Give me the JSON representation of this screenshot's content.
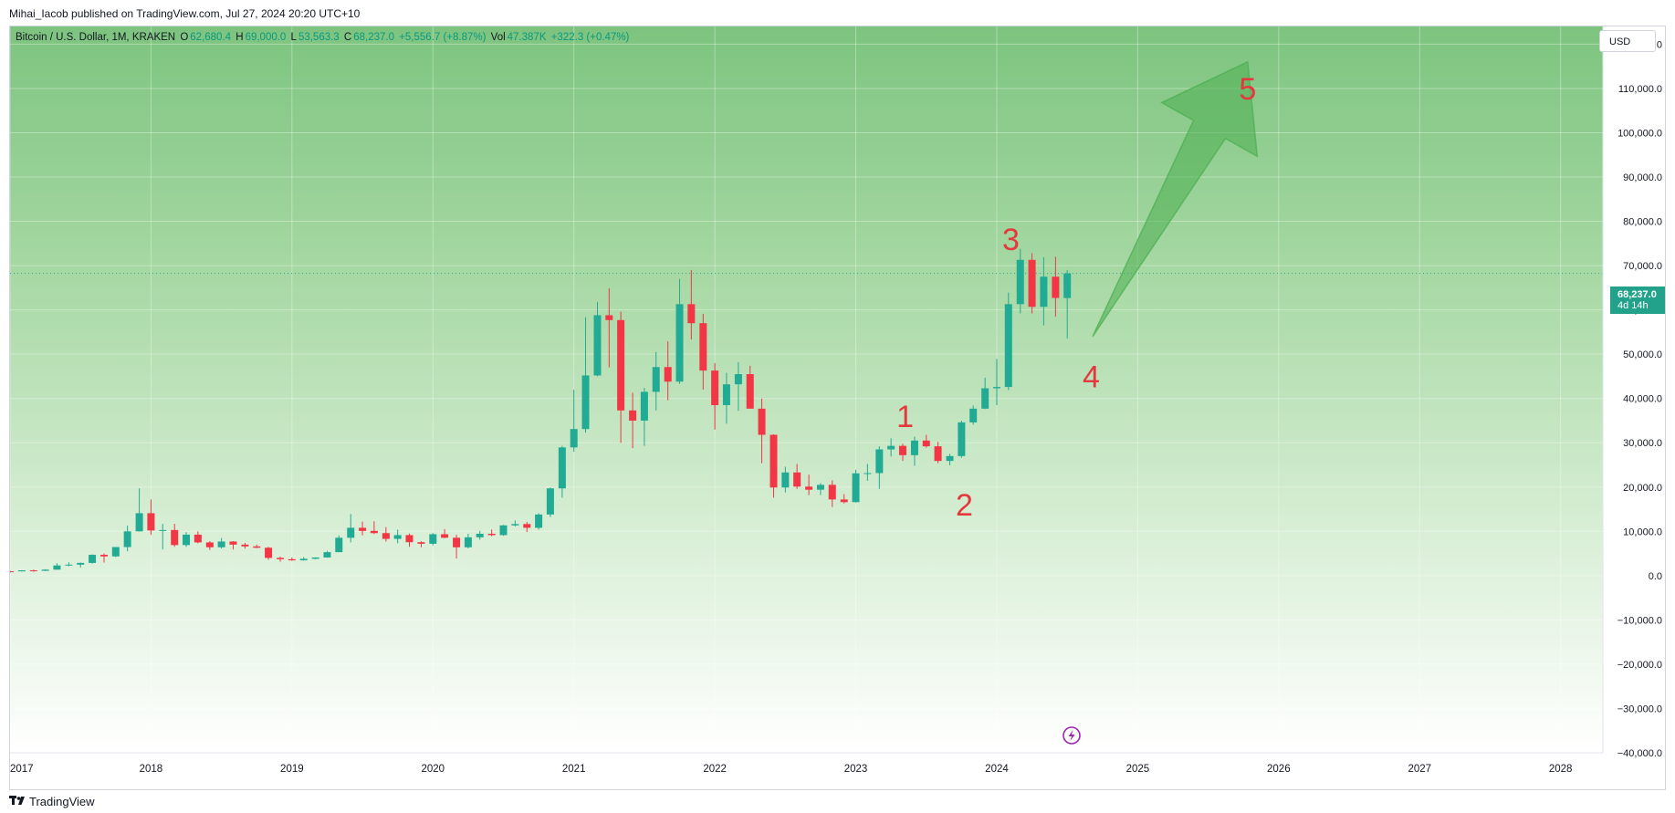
{
  "header": {
    "published_by": "Mihai_Iacob published on TradingView.com, Jul 27, 2024 20:20 UTC+10"
  },
  "legend": {
    "symbol": "Bitcoin / U.S. Dollar, 1M, KRAKEN",
    "open_label": "O",
    "open_value": "62,680.4",
    "high_label": "H",
    "high_value": "69,000.0",
    "low_label": "L",
    "low_value": "53,563.3",
    "close_label": "C",
    "close_value": "68,237.0",
    "change": "+5,556.7 (+8.87%)",
    "vol_label": "Vol",
    "vol_value": "47.387K",
    "vol_change": "+322.3 (+0.47%)"
  },
  "currency_button": "USD",
  "last_price": {
    "price": "68,237.0",
    "countdown": "4d 14h"
  },
  "footer": {
    "brand": "TradingView"
  },
  "colors": {
    "up": "#22ab94",
    "down": "#f23645",
    "annotation_red": "#e5373e",
    "arrow_green": "#4caf50"
  },
  "icons": {
    "alert": "lightning-icon",
    "logo": "tradingview-logo-icon"
  },
  "chart_data": {
    "type": "candlestick",
    "y_ticks": [
      "120,000.0",
      "110,000.0",
      "100,000.0",
      "90,000.0",
      "80,000.0",
      "70,000.0",
      "60,000.0",
      "50,000.0",
      "40,000.0",
      "30,000.0",
      "20,000.0",
      "10,000.0",
      "0.0",
      "−10,000.0",
      "−20,000.0",
      "−30,000.0",
      "−40,000.0"
    ],
    "y_tick_values": [
      120000,
      110000,
      100000,
      90000,
      80000,
      70000,
      60000,
      50000,
      40000,
      30000,
      20000,
      10000,
      0,
      -10000,
      -20000,
      -30000,
      -40000
    ],
    "ylim": [
      -40000,
      124000
    ],
    "x_ticks": [
      "2017",
      "2018",
      "2019",
      "2020",
      "2021",
      "2022",
      "2023",
      "2024",
      "2025",
      "2026",
      "2027",
      "2028"
    ],
    "x_tick_values": [
      2017,
      2018,
      2019,
      2020,
      2021,
      2022,
      2023,
      2024,
      2025,
      2026,
      2027,
      2028
    ],
    "xlim": [
      2017,
      2028.3
    ],
    "last_price_value": 68237,
    "candles": [
      {
        "t": 2017.0,
        "o": 970,
        "h": 1100,
        "l": 750,
        "c": 960
      },
      {
        "t": 2017.083,
        "o": 960,
        "h": 1200,
        "l": 920,
        "c": 1190
      },
      {
        "t": 2017.167,
        "o": 1190,
        "h": 1350,
        "l": 900,
        "c": 1080
      },
      {
        "t": 2017.25,
        "o": 1080,
        "h": 1450,
        "l": 1060,
        "c": 1350
      },
      {
        "t": 2017.333,
        "o": 1350,
        "h": 2800,
        "l": 1350,
        "c": 2300
      },
      {
        "t": 2017.417,
        "o": 2300,
        "h": 3000,
        "l": 2100,
        "c": 2480
      },
      {
        "t": 2017.5,
        "o": 2480,
        "h": 2950,
        "l": 1850,
        "c": 2870
      },
      {
        "t": 2017.583,
        "o": 2870,
        "h": 4800,
        "l": 2700,
        "c": 4700
      },
      {
        "t": 2017.667,
        "o": 4700,
        "h": 5000,
        "l": 2950,
        "c": 4340
      },
      {
        "t": 2017.75,
        "o": 4340,
        "h": 6450,
        "l": 4200,
        "c": 6450
      },
      {
        "t": 2017.833,
        "o": 6450,
        "h": 11300,
        "l": 5500,
        "c": 10000
      },
      {
        "t": 2017.917,
        "o": 10000,
        "h": 19700,
        "l": 10000,
        "c": 14100
      },
      {
        "t": 2018.0,
        "o": 14100,
        "h": 17200,
        "l": 9200,
        "c": 10200
      },
      {
        "t": 2018.083,
        "o": 10200,
        "h": 11700,
        "l": 5900,
        "c": 10300
      },
      {
        "t": 2018.167,
        "o": 10300,
        "h": 11700,
        "l": 6500,
        "c": 6900
      },
      {
        "t": 2018.25,
        "o": 6900,
        "h": 9800,
        "l": 6500,
        "c": 9250
      },
      {
        "t": 2018.333,
        "o": 9250,
        "h": 10000,
        "l": 7300,
        "c": 7500
      },
      {
        "t": 2018.417,
        "o": 7500,
        "h": 7800,
        "l": 5800,
        "c": 6400
      },
      {
        "t": 2018.5,
        "o": 6400,
        "h": 8500,
        "l": 6100,
        "c": 7700
      },
      {
        "t": 2018.583,
        "o": 7700,
        "h": 7800,
        "l": 5900,
        "c": 7000
      },
      {
        "t": 2018.667,
        "o": 7000,
        "h": 7400,
        "l": 6100,
        "c": 6600
      },
      {
        "t": 2018.75,
        "o": 6600,
        "h": 7000,
        "l": 6200,
        "c": 6300
      },
      {
        "t": 2018.833,
        "o": 6300,
        "h": 6500,
        "l": 3600,
        "c": 4000
      },
      {
        "t": 2018.917,
        "o": 4000,
        "h": 4300,
        "l": 3150,
        "c": 3700
      },
      {
        "t": 2019.0,
        "o": 3700,
        "h": 4100,
        "l": 3350,
        "c": 3450
      },
      {
        "t": 2019.083,
        "o": 3450,
        "h": 4200,
        "l": 3400,
        "c": 3800
      },
      {
        "t": 2019.167,
        "o": 3800,
        "h": 4100,
        "l": 3700,
        "c": 4100
      },
      {
        "t": 2019.25,
        "o": 4100,
        "h": 5600,
        "l": 4050,
        "c": 5300
      },
      {
        "t": 2019.333,
        "o": 5300,
        "h": 9100,
        "l": 5300,
        "c": 8550
      },
      {
        "t": 2019.417,
        "o": 8550,
        "h": 13900,
        "l": 7500,
        "c": 10800
      },
      {
        "t": 2019.5,
        "o": 10800,
        "h": 12200,
        "l": 9100,
        "c": 10100
      },
      {
        "t": 2019.583,
        "o": 10100,
        "h": 12300,
        "l": 9400,
        "c": 9600
      },
      {
        "t": 2019.667,
        "o": 9600,
        "h": 10950,
        "l": 7700,
        "c": 8300
      },
      {
        "t": 2019.75,
        "o": 8300,
        "h": 10400,
        "l": 7300,
        "c": 9150
      },
      {
        "t": 2019.833,
        "o": 9150,
        "h": 9500,
        "l": 6500,
        "c": 7550
      },
      {
        "t": 2019.917,
        "o": 7550,
        "h": 7750,
        "l": 6400,
        "c": 7200
      },
      {
        "t": 2020.0,
        "o": 7200,
        "h": 9600,
        "l": 6850,
        "c": 9350
      },
      {
        "t": 2020.083,
        "o": 9350,
        "h": 10500,
        "l": 8450,
        "c": 8550
      },
      {
        "t": 2020.167,
        "o": 8550,
        "h": 9200,
        "l": 3850,
        "c": 6400
      },
      {
        "t": 2020.25,
        "o": 6400,
        "h": 9450,
        "l": 6150,
        "c": 8650
      },
      {
        "t": 2020.333,
        "o": 8650,
        "h": 10100,
        "l": 8100,
        "c": 9450
      },
      {
        "t": 2020.417,
        "o": 9450,
        "h": 10400,
        "l": 8900,
        "c": 9150
      },
      {
        "t": 2020.5,
        "o": 9150,
        "h": 11450,
        "l": 9000,
        "c": 11350
      },
      {
        "t": 2020.583,
        "o": 11350,
        "h": 12450,
        "l": 11100,
        "c": 11650
      },
      {
        "t": 2020.667,
        "o": 11650,
        "h": 12100,
        "l": 9850,
        "c": 10800
      },
      {
        "t": 2020.75,
        "o": 10800,
        "h": 14100,
        "l": 10400,
        "c": 13800
      },
      {
        "t": 2020.833,
        "o": 13800,
        "h": 19900,
        "l": 13200,
        "c": 19700
      },
      {
        "t": 2020.917,
        "o": 19700,
        "h": 29300,
        "l": 17600,
        "c": 28950
      },
      {
        "t": 2021.0,
        "o": 28950,
        "h": 41950,
        "l": 28000,
        "c": 33100
      },
      {
        "t": 2021.083,
        "o": 33100,
        "h": 58350,
        "l": 32300,
        "c": 45200
      },
      {
        "t": 2021.167,
        "o": 45200,
        "h": 61800,
        "l": 45000,
        "c": 58800
      },
      {
        "t": 2021.25,
        "o": 58800,
        "h": 64900,
        "l": 47000,
        "c": 57700
      },
      {
        "t": 2021.333,
        "o": 57700,
        "h": 59600,
        "l": 30000,
        "c": 37300
      },
      {
        "t": 2021.417,
        "o": 37300,
        "h": 41300,
        "l": 28800,
        "c": 35000
      },
      {
        "t": 2021.5,
        "o": 35000,
        "h": 42400,
        "l": 29300,
        "c": 41500
      },
      {
        "t": 2021.583,
        "o": 41500,
        "h": 50500,
        "l": 37300,
        "c": 47100
      },
      {
        "t": 2021.667,
        "o": 47100,
        "h": 52900,
        "l": 39600,
        "c": 43800
      },
      {
        "t": 2021.75,
        "o": 43800,
        "h": 67000,
        "l": 43300,
        "c": 61300
      },
      {
        "t": 2021.833,
        "o": 61300,
        "h": 69000,
        "l": 53300,
        "c": 57000
      },
      {
        "t": 2021.917,
        "o": 57000,
        "h": 59100,
        "l": 42000,
        "c": 46300
      },
      {
        "t": 2022.0,
        "o": 46300,
        "h": 48000,
        "l": 33000,
        "c": 38500
      },
      {
        "t": 2022.083,
        "o": 38500,
        "h": 45800,
        "l": 34300,
        "c": 43200
      },
      {
        "t": 2022.167,
        "o": 43200,
        "h": 48200,
        "l": 37200,
        "c": 45500
      },
      {
        "t": 2022.25,
        "o": 45500,
        "h": 47400,
        "l": 37700,
        "c": 37700
      },
      {
        "t": 2022.333,
        "o": 37700,
        "h": 40000,
        "l": 25400,
        "c": 31800
      },
      {
        "t": 2022.417,
        "o": 31800,
        "h": 31900,
        "l": 17600,
        "c": 19900
      },
      {
        "t": 2022.5,
        "o": 19900,
        "h": 24600,
        "l": 18800,
        "c": 23300
      },
      {
        "t": 2022.583,
        "o": 23300,
        "h": 25200,
        "l": 19600,
        "c": 20100
      },
      {
        "t": 2022.667,
        "o": 20100,
        "h": 22800,
        "l": 18200,
        "c": 19400
      },
      {
        "t": 2022.75,
        "o": 19400,
        "h": 20900,
        "l": 18200,
        "c": 20500
      },
      {
        "t": 2022.833,
        "o": 20500,
        "h": 21500,
        "l": 15500,
        "c": 17200
      },
      {
        "t": 2022.917,
        "o": 17200,
        "h": 18400,
        "l": 16300,
        "c": 16600
      },
      {
        "t": 2023.0,
        "o": 16600,
        "h": 23900,
        "l": 16500,
        "c": 23100
      },
      {
        "t": 2023.083,
        "o": 23100,
        "h": 25200,
        "l": 21400,
        "c": 23150
      },
      {
        "t": 2023.167,
        "o": 23150,
        "h": 29200,
        "l": 19600,
        "c": 28500
      },
      {
        "t": 2023.25,
        "o": 28500,
        "h": 31000,
        "l": 26900,
        "c": 29300
      },
      {
        "t": 2023.333,
        "o": 29300,
        "h": 29800,
        "l": 25900,
        "c": 27200
      },
      {
        "t": 2023.417,
        "o": 27200,
        "h": 31400,
        "l": 24800,
        "c": 30500
      },
      {
        "t": 2023.5,
        "o": 30500,
        "h": 31800,
        "l": 28900,
        "c": 29200
      },
      {
        "t": 2023.583,
        "o": 29200,
        "h": 30200,
        "l": 25400,
        "c": 25900
      },
      {
        "t": 2023.667,
        "o": 25900,
        "h": 27500,
        "l": 24900,
        "c": 27000
      },
      {
        "t": 2023.75,
        "o": 27000,
        "h": 35000,
        "l": 26600,
        "c": 34600
      },
      {
        "t": 2023.833,
        "o": 34600,
        "h": 38400,
        "l": 34100,
        "c": 37700
      },
      {
        "t": 2023.917,
        "o": 37700,
        "h": 44700,
        "l": 37600,
        "c": 42300
      },
      {
        "t": 2024.0,
        "o": 42300,
        "h": 48900,
        "l": 38500,
        "c": 42600
      },
      {
        "t": 2024.083,
        "o": 42600,
        "h": 63900,
        "l": 41900,
        "c": 61300
      },
      {
        "t": 2024.167,
        "o": 61300,
        "h": 73800,
        "l": 59200,
        "c": 71300
      },
      {
        "t": 2024.25,
        "o": 71300,
        "h": 72800,
        "l": 59200,
        "c": 60700
      },
      {
        "t": 2024.333,
        "o": 60700,
        "h": 71900,
        "l": 56500,
        "c": 67500
      },
      {
        "t": 2024.417,
        "o": 67500,
        "h": 72000,
        "l": 58500,
        "c": 62700
      },
      {
        "t": 2024.5,
        "o": 62680.4,
        "h": 69000,
        "l": 53563.3,
        "c": 68237
      }
    ],
    "annotations": [
      {
        "label": "1",
        "t": 2023.35,
        "v": 36000
      },
      {
        "label": "2",
        "t": 2023.77,
        "v": 16000
      },
      {
        "label": "3",
        "t": 2024.1,
        "v": 76000
      },
      {
        "label": "4",
        "t": 2024.67,
        "v": 45000
      },
      {
        "label": "5",
        "t": 2025.78,
        "v": 110000
      }
    ],
    "projection_arrow": {
      "from": {
        "t": 2024.68,
        "v": 54000
      },
      "to": {
        "t": 2025.78,
        "v": 116000
      }
    }
  }
}
